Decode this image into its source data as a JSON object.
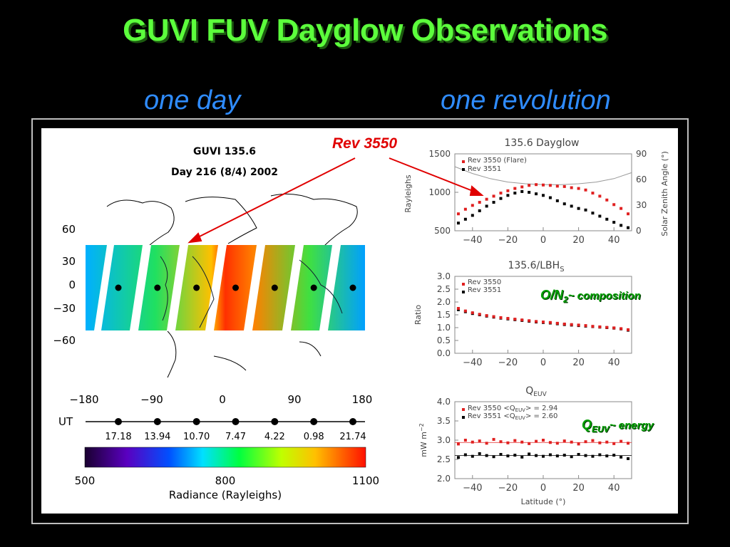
{
  "slide": {
    "title": "GUVI FUV Dayglow Observations",
    "subtitle_left": "one day",
    "subtitle_right": "one revolution",
    "callout": "Rev 3550",
    "annotation_o2_main": "O/N",
    "annotation_o2_sub": "2",
    "annotation_o2_rest": "~ composition",
    "annotation_q_main": "Q",
    "annotation_q_sub": "EUV",
    "annotation_q_rest": "~ energy"
  },
  "colors": {
    "rev3550": "#e02020",
    "rev3551": "#000000",
    "title": "#5cff3c",
    "subtitle": "#2f8cff",
    "annotation": "#00a000"
  },
  "chart_data": [
    {
      "type": "heatmap",
      "title_line1": "GUVI 135.6",
      "title_line2": "Day 216 (8/4) 2002",
      "xticks": [
        "−180",
        "−90",
        "0",
        "90",
        "180"
      ],
      "yticks": [
        "60",
        "30",
        "0",
        "−30",
        "−60"
      ],
      "xlim": [
        -180,
        180
      ],
      "ylim": [
        -70,
        70
      ],
      "ut_label": "UT",
      "ut_values": [
        "17.18",
        "13.94",
        "10.70",
        "7.47",
        "4.22",
        "0.98",
        "21.74"
      ],
      "colorbar_ticks": [
        "500",
        "800",
        "1100"
      ],
      "colorbar_range": [
        500,
        1100
      ],
      "colorbar_label": "Radiance (Rayleighs)"
    },
    {
      "type": "scatter",
      "title": "135.6 Dayglow",
      "ylabel": "Rayleighs",
      "y2label": "Solar Zenith Angle (°)",
      "xlim": [
        -50,
        50
      ],
      "ylim": [
        500,
        1500
      ],
      "y2lim": [
        0,
        90
      ],
      "xticks": [
        "−40",
        "−20",
        "0",
        "20",
        "40"
      ],
      "yticks": [
        "500",
        "1000",
        "1500"
      ],
      "y2ticks": [
        "0",
        "30",
        "60",
        "90"
      ],
      "legend": [
        "Rev 3550 (Flare)",
        "Rev 3551"
      ],
      "series": [
        {
          "name": "Rev 3550 (Flare)",
          "x": [
            -48,
            -44,
            -40,
            -36,
            -32,
            -28,
            -24,
            -20,
            -16,
            -12,
            -8,
            -4,
            0,
            4,
            8,
            12,
            16,
            20,
            24,
            28,
            32,
            36,
            40,
            44,
            48
          ],
          "y": [
            720,
            780,
            830,
            870,
            910,
            950,
            990,
            1020,
            1050,
            1070,
            1090,
            1100,
            1095,
            1090,
            1080,
            1075,
            1060,
            1050,
            1030,
            990,
            950,
            900,
            840,
            790,
            720
          ]
        },
        {
          "name": "Rev 3551",
          "x": [
            -48,
            -44,
            -40,
            -36,
            -32,
            -28,
            -24,
            -20,
            -16,
            -12,
            -8,
            -4,
            0,
            4,
            8,
            12,
            16,
            20,
            24,
            28,
            32,
            36,
            40,
            44,
            48
          ],
          "y": [
            600,
            650,
            700,
            760,
            820,
            870,
            920,
            960,
            990,
            1010,
            1000,
            980,
            960,
            930,
            890,
            850,
            820,
            790,
            770,
            730,
            690,
            650,
            610,
            570,
            540
          ]
        }
      ],
      "sza_curve": {
        "x": [
          -50,
          -40,
          -30,
          -20,
          -10,
          0,
          10,
          20,
          30,
          40,
          50
        ],
        "y": [
          75,
          67,
          61,
          57,
          55,
          54,
          54,
          55,
          57,
          61,
          68
        ]
      }
    },
    {
      "type": "scatter",
      "title_main": "135.6/LBH",
      "title_sub": "S",
      "ylabel": "Ratio",
      "xlim": [
        -50,
        50
      ],
      "ylim": [
        0,
        3
      ],
      "xticks": [
        "−40",
        "−20",
        "0",
        "20",
        "40"
      ],
      "yticks": [
        "0.0",
        "0.5",
        "1.0",
        "1.5",
        "2.0",
        "2.5",
        "3.0"
      ],
      "legend": [
        "Rev 3550",
        "Rev 3551"
      ],
      "series": [
        {
          "name": "Rev 3550",
          "x": [
            -48,
            -44,
            -40,
            -36,
            -32,
            -28,
            -24,
            -20,
            -16,
            -12,
            -8,
            -4,
            0,
            4,
            8,
            12,
            16,
            20,
            24,
            28,
            32,
            36,
            40,
            44,
            48
          ],
          "y": [
            1.75,
            1.65,
            1.58,
            1.52,
            1.47,
            1.43,
            1.39,
            1.36,
            1.33,
            1.3,
            1.27,
            1.24,
            1.22,
            1.2,
            1.17,
            1.14,
            1.12,
            1.1,
            1.08,
            1.05,
            1.03,
            1.01,
            0.99,
            0.96,
            0.92
          ]
        },
        {
          "name": "Rev 3551",
          "x": [
            -48,
            -44,
            -40,
            -36,
            -32,
            -28,
            -24,
            -20,
            -16,
            -12,
            -8,
            -4,
            0,
            4,
            8,
            12,
            16,
            20,
            24,
            28,
            32,
            36,
            40,
            44,
            48
          ],
          "y": [
            1.7,
            1.62,
            1.55,
            1.5,
            1.45,
            1.41,
            1.37,
            1.34,
            1.31,
            1.28,
            1.25,
            1.22,
            1.2,
            1.18,
            1.15,
            1.12,
            1.1,
            1.08,
            1.06,
            1.04,
            1.02,
            1.0,
            0.98,
            0.95,
            0.9
          ]
        }
      ]
    },
    {
      "type": "scatter",
      "title_main": "Q",
      "title_sub": "EUV",
      "ylabel": "mW m",
      "ylabel_sup": "−2",
      "xlabel": "Latitude (°)",
      "xlim": [
        -50,
        50
      ],
      "ylim": [
        2.0,
        4.0
      ],
      "xticks": [
        "−40",
        "−20",
        "0",
        "20",
        "40"
      ],
      "yticks": [
        "2.0",
        "2.5",
        "3.0",
        "3.5",
        "4.0"
      ],
      "legend": [
        "Rev 3550 <Q",
        "> = 2.94",
        "Rev 3551 <Q",
        "> = 2.60"
      ],
      "legend_sub": "EUV",
      "series": [
        {
          "name": "Rev 3550",
          "mean": 2.94,
          "x": [
            -48,
            -44,
            -40,
            -36,
            -32,
            -28,
            -24,
            -20,
            -16,
            -12,
            -8,
            -4,
            0,
            4,
            8,
            12,
            16,
            20,
            24,
            28,
            32,
            36,
            40,
            44,
            48
          ],
          "y": [
            2.9,
            3.0,
            2.95,
            2.98,
            2.92,
            3.02,
            2.96,
            2.93,
            2.99,
            2.95,
            2.91,
            2.97,
            3.0,
            2.94,
            2.92,
            2.98,
            2.95,
            2.9,
            2.96,
            2.99,
            2.93,
            2.95,
            2.91,
            2.97,
            2.92
          ]
        },
        {
          "name": "Rev 3551",
          "mean": 2.6,
          "x": [
            -48,
            -44,
            -40,
            -36,
            -32,
            -28,
            -24,
            -20,
            -16,
            -12,
            -8,
            -4,
            0,
            4,
            8,
            12,
            16,
            20,
            24,
            28,
            32,
            36,
            40,
            44,
            48
          ],
          "y": [
            2.55,
            2.62,
            2.58,
            2.65,
            2.6,
            2.57,
            2.63,
            2.59,
            2.61,
            2.56,
            2.64,
            2.6,
            2.58,
            2.62,
            2.59,
            2.61,
            2.57,
            2.63,
            2.6,
            2.58,
            2.62,
            2.59,
            2.61,
            2.56,
            2.52
          ]
        }
      ]
    }
  ]
}
